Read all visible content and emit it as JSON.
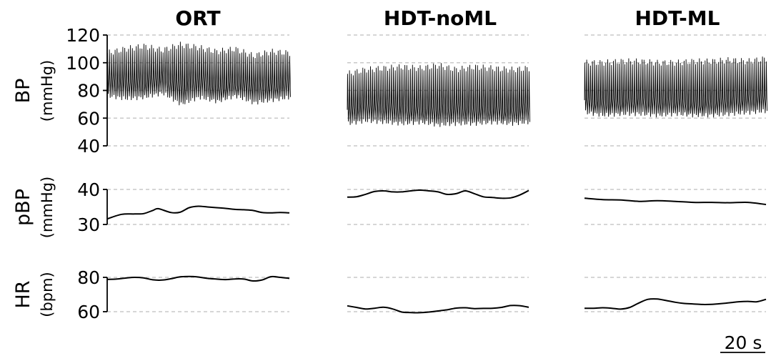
{
  "chart_data": {
    "type": "line",
    "columns": [
      "ORT",
      "HDT-noML",
      "HDT-ML"
    ],
    "rows": [
      {
        "key": "BP",
        "label": "BP",
        "unit": "(mmHg)",
        "ylim": [
          40,
          120
        ],
        "ticks": [
          40,
          60,
          80,
          100,
          120
        ],
        "grid": [
          40,
          60,
          80,
          100,
          120
        ],
        "waveform": true,
        "series": [
          {
            "column": "ORT",
            "x": [
              0,
              10,
              20,
              30,
              40,
              50,
              60,
              70,
              80,
              90,
              100
            ],
            "systolic": [
              107,
              110,
              112,
              109,
              113,
              111,
              108,
              110,
              105,
              108,
              107
            ],
            "mean": [
              90,
              89,
              86,
              93,
              84,
              91,
              82,
              85,
              87,
              83,
              88
            ],
            "diastolic": [
              76,
              74,
              75,
              78,
              70,
              75,
              72,
              76,
              71,
              73,
              75
            ]
          },
          {
            "column": "HDT-noML",
            "x": [
              0,
              10,
              20,
              30,
              40,
              50,
              60,
              70,
              80,
              90,
              100
            ],
            "systolic": [
              92,
              95,
              96,
              97,
              96,
              98,
              95,
              97,
              96,
              95,
              96
            ],
            "mean": [
              66,
              72,
              70,
              69,
              66,
              68,
              69,
              67,
              67,
              66,
              70
            ],
            "diastolic": [
              56,
              58,
              57,
              56,
              57,
              55,
              56,
              56,
              57,
              56,
              57
            ]
          },
          {
            "column": "HDT-ML",
            "x": [
              0,
              10,
              20,
              30,
              40,
              50,
              60,
              70,
              80,
              90,
              100
            ],
            "systolic": [
              100,
              100,
              101,
              101,
              100,
              100,
              101,
              101,
              102,
              101,
              103
            ],
            "mean": [
              73,
              72,
              72,
              74,
              73,
              73,
              70,
              72,
              74,
              75,
              76
            ],
            "diastolic": [
              64,
              62,
              63,
              63,
              62,
              63,
              62,
              62,
              63,
              64,
              65
            ]
          }
        ]
      },
      {
        "key": "pBP",
        "label": "pBP",
        "unit": "(mmHg)",
        "ylim": [
          30,
          40
        ],
        "ticks": [
          30,
          40
        ],
        "grid": [
          30,
          40
        ],
        "waveform": false,
        "series": [
          {
            "column": "ORT",
            "x": [
              0,
              8,
              15,
              20,
              25,
              28,
              35,
              40,
              45,
              50,
              55,
              60,
              65,
              70,
              75,
              80,
              85,
              90,
              95,
              100
            ],
            "y": [
              31.6,
              32.9,
              33.0,
              33.1,
              34.0,
              34.5,
              33.4,
              33.5,
              34.8,
              35.2,
              35.0,
              34.8,
              34.6,
              34.3,
              34.2,
              34.0,
              33.4,
              33.3,
              33.4,
              33.3
            ]
          },
          {
            "column": "HDT-noML",
            "x": [
              0,
              5,
              10,
              15,
              20,
              25,
              30,
              35,
              40,
              45,
              50,
              55,
              60,
              65,
              70,
              75,
              80,
              85,
              90,
              95,
              100
            ],
            "y": [
              37.8,
              37.9,
              38.6,
              39.4,
              39.6,
              39.3,
              39.3,
              39.6,
              39.8,
              39.6,
              39.3,
              38.6,
              38.8,
              39.6,
              38.8,
              37.9,
              37.7,
              37.5,
              37.6,
              38.4,
              39.7
            ]
          },
          {
            "column": "HDT-ML",
            "x": [
              0,
              10,
              20,
              30,
              40,
              50,
              60,
              70,
              80,
              90,
              100
            ],
            "y": [
              37.5,
              37.1,
              37.0,
              36.6,
              36.8,
              36.6,
              36.3,
              36.3,
              36.2,
              36.3,
              35.7
            ]
          }
        ]
      },
      {
        "key": "HR",
        "label": "HR",
        "unit": "(bpm)",
        "ylim": [
          60,
          80
        ],
        "ticks": [
          60,
          80
        ],
        "grid": [
          60,
          80
        ],
        "waveform": false,
        "series": [
          {
            "column": "ORT",
            "x": [
              0,
              5,
              10,
              15,
              20,
              25,
              30,
              35,
              40,
              45,
              50,
              55,
              60,
              65,
              70,
              75,
              80,
              85,
              90,
              95,
              100
            ],
            "y": [
              78.8,
              79.0,
              79.6,
              80.0,
              79.7,
              78.6,
              78.4,
              79.2,
              80.3,
              80.5,
              80.2,
              79.4,
              79.0,
              78.7,
              79.1,
              79.0,
              77.9,
              78.5,
              80.4,
              80.0,
              79.4
            ]
          },
          {
            "column": "HDT-noML",
            "x": [
              0,
              5,
              10,
              15,
              20,
              25,
              30,
              35,
              40,
              45,
              50,
              55,
              60,
              65,
              70,
              75,
              80,
              85,
              90,
              95,
              100
            ],
            "y": [
              63.4,
              62.5,
              61.6,
              62.0,
              62.6,
              61.6,
              59.8,
              59.5,
              59.4,
              59.8,
              60.4,
              61.1,
              62.1,
              62.3,
              61.8,
              61.9,
              62.0,
              62.5,
              63.6,
              63.5,
              62.6
            ]
          },
          {
            "column": "HDT-ML",
            "x": [
              0,
              5,
              10,
              15,
              20,
              25,
              30,
              35,
              40,
              45,
              50,
              55,
              60,
              65,
              70,
              75,
              80,
              85,
              90,
              95,
              100
            ],
            "y": [
              62.0,
              62.0,
              62.3,
              62.0,
              61.5,
              62.5,
              65.1,
              67.2,
              67.4,
              66.5,
              65.5,
              64.8,
              64.5,
              64.2,
              64.3,
              64.7,
              65.2,
              65.8,
              66.0,
              65.8,
              67.2
            ]
          }
        ]
      }
    ],
    "scale_bar_label": "20 s",
    "grid": true,
    "legend": "none"
  }
}
